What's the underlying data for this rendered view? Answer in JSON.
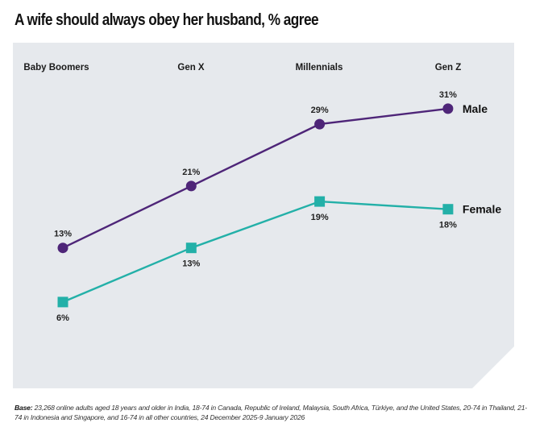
{
  "title": "A wife should always obey her husband, % agree",
  "footnote": {
    "label": "Base:",
    "text": " 23,268 online adults aged 18 years and older in India, 18-74 in Canada, Republic of Ireland, Malaysia, South Africa, Türkiye, and the United States, 20-74 in Thailand, 21-74 in Indonesia and Singapore, and 16-74 in all other countries, 24 December 2025-9 January 2026"
  },
  "colors": {
    "panel": "#e6e9ed",
    "male": "#4e2578",
    "female": "#23b0a8",
    "text": "#222222"
  },
  "chart_data": {
    "type": "line",
    "title": "A wife should always obey her husband, % agree",
    "categories": [
      "Baby Boomers",
      "Gen X",
      "Millennials",
      "Gen Z"
    ],
    "series": [
      {
        "name": "Male",
        "marker": "circle",
        "values": [
          13,
          21,
          29,
          31
        ],
        "labels": [
          "13%",
          "21%",
          "29%",
          "31%"
        ]
      },
      {
        "name": "Female",
        "marker": "square",
        "values": [
          6,
          13,
          19,
          18
        ],
        "labels": [
          "6%",
          "13%",
          "19%",
          "18%"
        ]
      }
    ],
    "xlabel": "",
    "ylabel": "",
    "grid": false,
    "legend": "right (end-of-line labels)",
    "category_axis_position": "top"
  }
}
